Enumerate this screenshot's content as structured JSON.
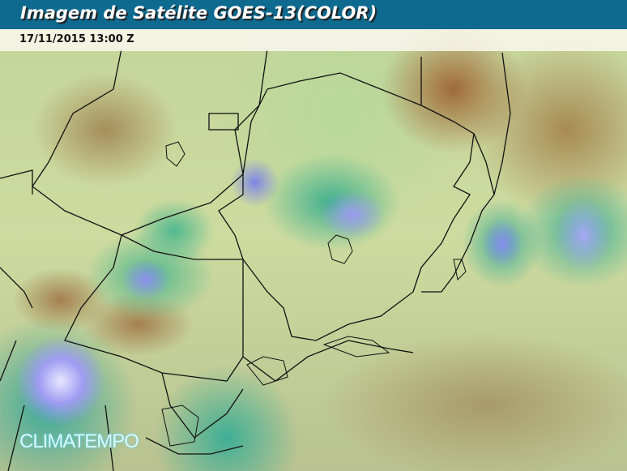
{
  "header": {
    "title": "Imagem de Satélite GOES-13(COLOR)"
  },
  "timestamp": "17/11/2015 13:00 Z",
  "logo": {
    "text": "CLIMATEMPO"
  },
  "colors": {
    "title_bar": "#0e6a8e",
    "cloud_high": "#9f9cf2",
    "cloud_mid": "#3fae95",
    "clear_warm": "#a06a3a",
    "background": "#c9d99a"
  }
}
